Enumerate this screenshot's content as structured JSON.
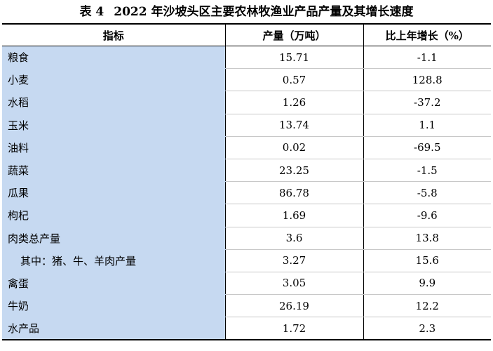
{
  "title": {
    "label": "表 4",
    "text": "2022 年沙坡头区主要农林牧渔业产品产量及其增长速度"
  },
  "table": {
    "headers": [
      "指标",
      "产量（万吨）",
      "比上年增长（%）"
    ],
    "rows": [
      {
        "name": "粮食",
        "output": "15.71",
        "growth": "-1.1"
      },
      {
        "name": "小麦",
        "output": "0.57",
        "growth": "128.8"
      },
      {
        "name": "水稻",
        "output": "1.26",
        "growth": "-37.2"
      },
      {
        "name": "玉米",
        "output": "13.74",
        "growth": "1.1"
      },
      {
        "name": "油料",
        "output": "0.02",
        "growth": "-69.5"
      },
      {
        "name": "蔬菜",
        "output": "23.25",
        "growth": "-1.5"
      },
      {
        "name": "瓜果",
        "output": "86.78",
        "growth": "-5.8"
      },
      {
        "name": "枸杞",
        "output": "1.69",
        "growth": "-9.6"
      },
      {
        "name": "肉类总产量",
        "output": "3.6",
        "growth": "13.8"
      },
      {
        "name": "其中：猪、牛、羊肉产量",
        "output": "3.27",
        "growth": "15.6"
      },
      {
        "name": "禽蛋",
        "output": "3.05",
        "growth": "9.9"
      },
      {
        "name": "牛奶",
        "output": "26.19",
        "growth": "12.2"
      },
      {
        "name": "水产品",
        "output": "1.72",
        "growth": "2.3"
      }
    ]
  }
}
